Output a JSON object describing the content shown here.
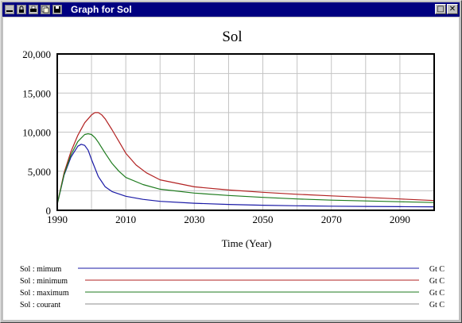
{
  "window": {
    "title": "Graph for Sol",
    "toolbar_icons": [
      "minimize-bar-icon",
      "lock-icon",
      "print-icon",
      "copy-icon",
      "save-icon"
    ],
    "restore_glyph": "□",
    "close_glyph": "✕"
  },
  "chart_data": {
    "type": "line",
    "title": "Sol",
    "xlabel": "Time (Year)",
    "ylabel": "",
    "xlim": [
      1990,
      2100
    ],
    "ylim": [
      0,
      20000
    ],
    "xticks": [
      1990,
      2010,
      2030,
      2050,
      2070,
      2090
    ],
    "xtick_labels": [
      "1990",
      "2010",
      "2030",
      "2050",
      "2070",
      "2090"
    ],
    "yticks": [
      0,
      5000,
      10000,
      15000,
      20000
    ],
    "ytick_labels": [
      "0",
      "5,000",
      "10,000",
      "15,000",
      "20,000"
    ],
    "grid": true,
    "legend_position": "bottom",
    "series": [
      {
        "name": "Sol : mimum",
        "unit": "Gt C",
        "color": "#1a1aa6",
        "x": [
          1990,
          1992,
          1994,
          1996,
          1997,
          1998,
          1999,
          2000,
          2002,
          2004,
          2006,
          2010,
          2015,
          2020,
          2030,
          2040,
          2050,
          2060,
          2070,
          2080,
          2090,
          2100
        ],
        "y": [
          800,
          4500,
          6800,
          8200,
          8450,
          8300,
          7700,
          6500,
          4300,
          3000,
          2400,
          1800,
          1400,
          1150,
          900,
          750,
          650,
          580,
          530,
          500,
          470,
          450
        ]
      },
      {
        "name": "Sol : minimum",
        "unit": "Gt C",
        "color": "#b22222",
        "x": [
          1990,
          1992,
          1994,
          1996,
          1998,
          2000,
          2001,
          2002,
          2003,
          2004,
          2006,
          2008,
          2010,
          2013,
          2016,
          2020,
          2030,
          2040,
          2050,
          2060,
          2070,
          2080,
          2090,
          2100
        ],
        "y": [
          800,
          4800,
          7500,
          9600,
          11200,
          12200,
          12500,
          12500,
          12200,
          11700,
          10300,
          8800,
          7300,
          5800,
          4800,
          3900,
          3000,
          2600,
          2300,
          2050,
          1850,
          1650,
          1450,
          1250
        ]
      },
      {
        "name": "Sol : maximum",
        "unit": "Gt C",
        "color": "#1e7b1e",
        "x": [
          1990,
          1992,
          1994,
          1996,
          1998,
          1999,
          2000,
          2001,
          2002,
          2004,
          2006,
          2008,
          2010,
          2015,
          2020,
          2030,
          2040,
          2050,
          2060,
          2070,
          2080,
          2090,
          2100
        ],
        "y": [
          800,
          4600,
          7100,
          8800,
          9700,
          9800,
          9700,
          9300,
          8700,
          7300,
          6000,
          5000,
          4200,
          3300,
          2700,
          2200,
          1900,
          1650,
          1450,
          1300,
          1200,
          1100,
          1000
        ]
      },
      {
        "name": "Sol : courant",
        "unit": "Gt C",
        "color": "#8c8c8c",
        "x": [],
        "y": []
      }
    ]
  }
}
